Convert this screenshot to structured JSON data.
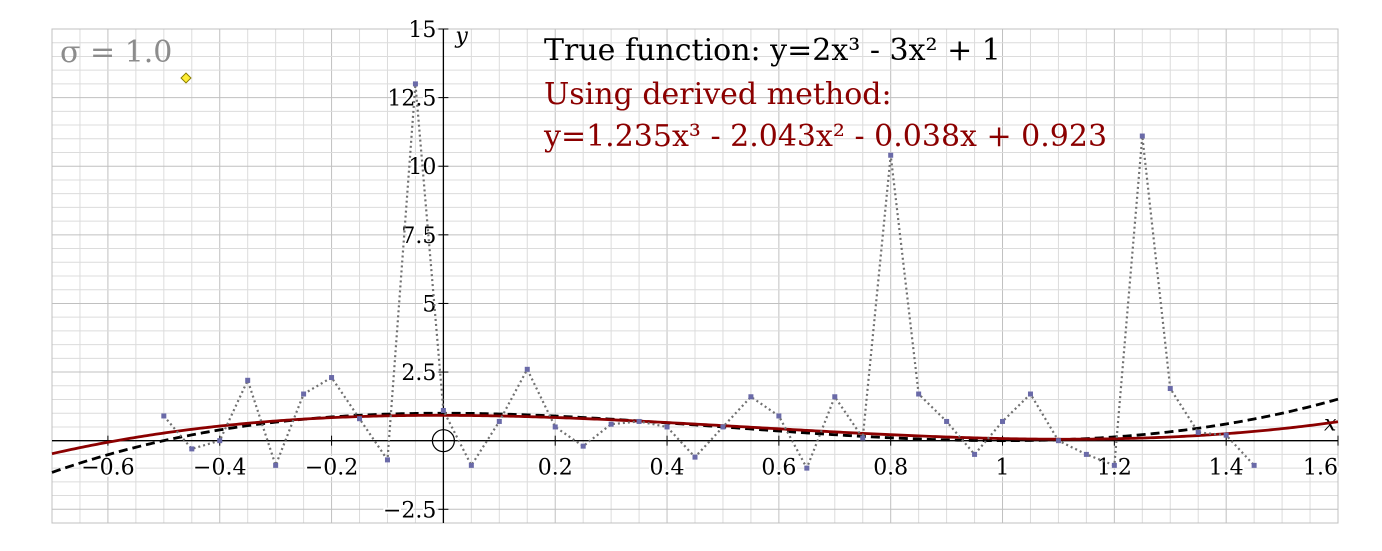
{
  "chart_data": {
    "type": "line",
    "xlim": [
      -0.7,
      1.6
    ],
    "ylim": [
      -3,
      15
    ],
    "xlabel": "x",
    "ylabel": "y",
    "grid": true,
    "x_ticks": [
      -0.6,
      -0.4,
      -0.2,
      0.2,
      0.4,
      0.6,
      0.8,
      1,
      1.2,
      1.4,
      1.6
    ],
    "x_tick_labels": [
      "−0.6",
      "−0.4",
      "−0.2",
      "0.2",
      "0.4",
      "0.6",
      "0.8",
      "1",
      "1.2",
      "1.4",
      "1.6"
    ],
    "y_ticks": [
      -2.5,
      2.5,
      5,
      7.5,
      10,
      12.5,
      15
    ],
    "y_tick_labels": [
      "−2.5",
      "2.5",
      "5",
      "7.5",
      "10",
      "12.5",
      "15"
    ],
    "annotations": {
      "sigma": "σ = 1.0",
      "true_function": "True function: y=2x³ - 3x² + 1",
      "derived_title": "Using derived method:",
      "derived_equation": "y=1.235x³ - 2.043x² - 0.038x + 0.923"
    },
    "series": [
      {
        "role": "true_function",
        "style": "dashed",
        "color": "#000000",
        "coefficients": [
          2,
          -3,
          0,
          1
        ]
      },
      {
        "role": "derived_fit",
        "style": "solid",
        "color": "#8b0000",
        "coefficients": [
          1.235,
          -2.043,
          -0.038,
          0.923
        ]
      },
      {
        "role": "noisy_samples",
        "style": "dotted-markers",
        "color": "#6a6aa8",
        "x": [
          -0.5,
          -0.45,
          -0.4,
          -0.35,
          -0.3,
          -0.25,
          -0.2,
          -0.15,
          -0.1,
          -0.05,
          0,
          0.05,
          0.1,
          0.15,
          0.2,
          0.25,
          0.3,
          0.35,
          0.4,
          0.45,
          0.5,
          0.55,
          0.6,
          0.65,
          0.7,
          0.75,
          0.8,
          0.85,
          0.9,
          0.95,
          1,
          1.05,
          1.1,
          1.15,
          1.2,
          1.25,
          1.3,
          1.35,
          1.4,
          1.45
        ],
        "y": [
          0.9,
          -0.3,
          0.0,
          2.2,
          -0.9,
          1.7,
          2.3,
          0.8,
          -0.7,
          13.0,
          1.1,
          -0.9,
          0.7,
          2.6,
          0.5,
          -0.2,
          0.6,
          0.7,
          0.5,
          -0.6,
          0.5,
          1.6,
          0.9,
          -1.0,
          1.6,
          0.1,
          10.4,
          1.7,
          0.7,
          -0.5,
          0.7,
          1.7,
          0.0,
          -0.5,
          -0.9,
          11.1,
          1.9,
          0.3,
          0.2,
          -0.9
        ]
      }
    ],
    "colors": {
      "true_function": "#000000",
      "derived_text": "#8b0000",
      "sigma_text": "#8c8c8c",
      "samples": "#6a6aa8"
    },
    "markers": {
      "origin_circle": "origin",
      "control_point": "yellow-diamond"
    }
  }
}
